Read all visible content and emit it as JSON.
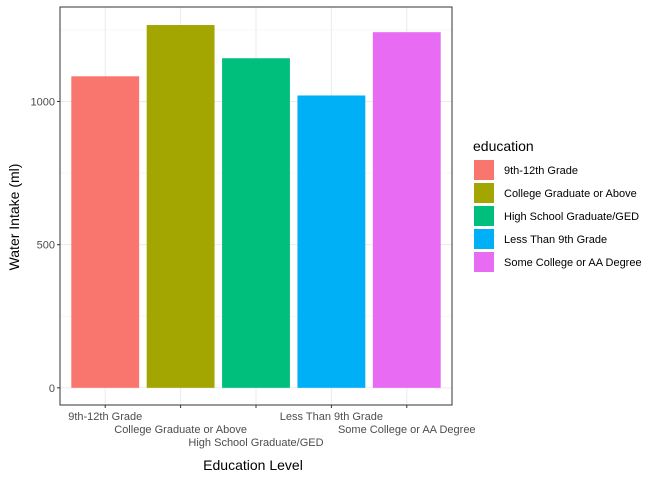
{
  "chart_data": {
    "type": "bar",
    "title": "",
    "xlabel": "Education Level",
    "ylabel": "Water Intake (ml)",
    "categories": [
      "9th-12th Grade",
      "College Graduate or Above",
      "High School Graduate/GED",
      "Less Than 9th Grade",
      "Some College or AA Degree"
    ],
    "values": [
      1088,
      1267,
      1151,
      1021,
      1242
    ],
    "colors": [
      "#F8766D",
      "#A3A500",
      "#00BF7D",
      "#00B0F6",
      "#E76BF3"
    ],
    "yticks": [
      0,
      500,
      1000
    ],
    "ytick_labels": [
      "0",
      "500",
      "1000"
    ],
    "ylim": [
      -60,
      1330
    ],
    "grid": true,
    "legend": {
      "title": "education",
      "position": "right",
      "entries": [
        "9th-12th Grade",
        "College Graduate or Above",
        "High School Graduate/GED",
        "Less Than 9th Grade",
        "Some College or AA Degree"
      ]
    }
  }
}
